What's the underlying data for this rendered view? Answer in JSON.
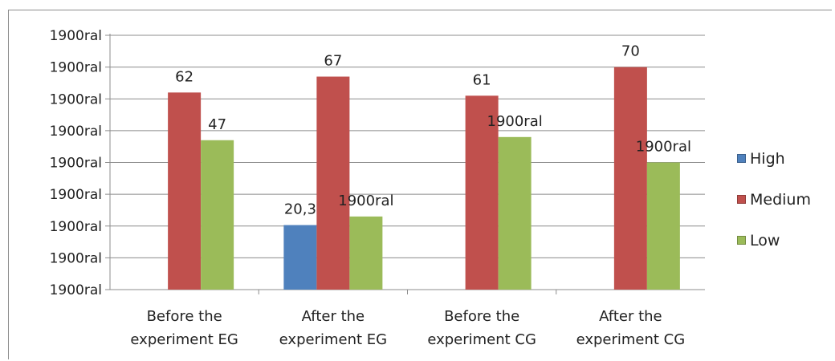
{
  "chart_data": {
    "type": "bar",
    "categories": [
      [
        "Before the",
        "experiment EG"
      ],
      [
        "After the",
        "experiment EG"
      ],
      [
        "Before the",
        "experiment CG"
      ],
      [
        "After the",
        "experiment CG"
      ]
    ],
    "y_tick_labels": [
      "1900ral",
      "1900ral",
      "1900ral",
      "1900ral",
      "1900ral",
      "1900ral",
      "1900ral",
      "1900ral",
      "1900ral"
    ],
    "ylim": [
      0,
      80
    ],
    "grid": true,
    "legend_position": "right",
    "series": [
      {
        "name": "High",
        "color": "#4f81bd",
        "values": [
          0,
          20.3,
          0,
          0
        ],
        "labels": [
          "",
          "20,3",
          "",
          ""
        ]
      },
      {
        "name": "Medium",
        "color": "#c0504d",
        "values": [
          62,
          67,
          61,
          70
        ],
        "labels": [
          "62",
          "67",
          "61",
          "70"
        ]
      },
      {
        "name": "Low",
        "color": "#9bbb59",
        "values": [
          47,
          23,
          48,
          40
        ],
        "labels": [
          "47",
          "1900ral",
          "1900ral",
          "1900ral"
        ]
      }
    ]
  }
}
